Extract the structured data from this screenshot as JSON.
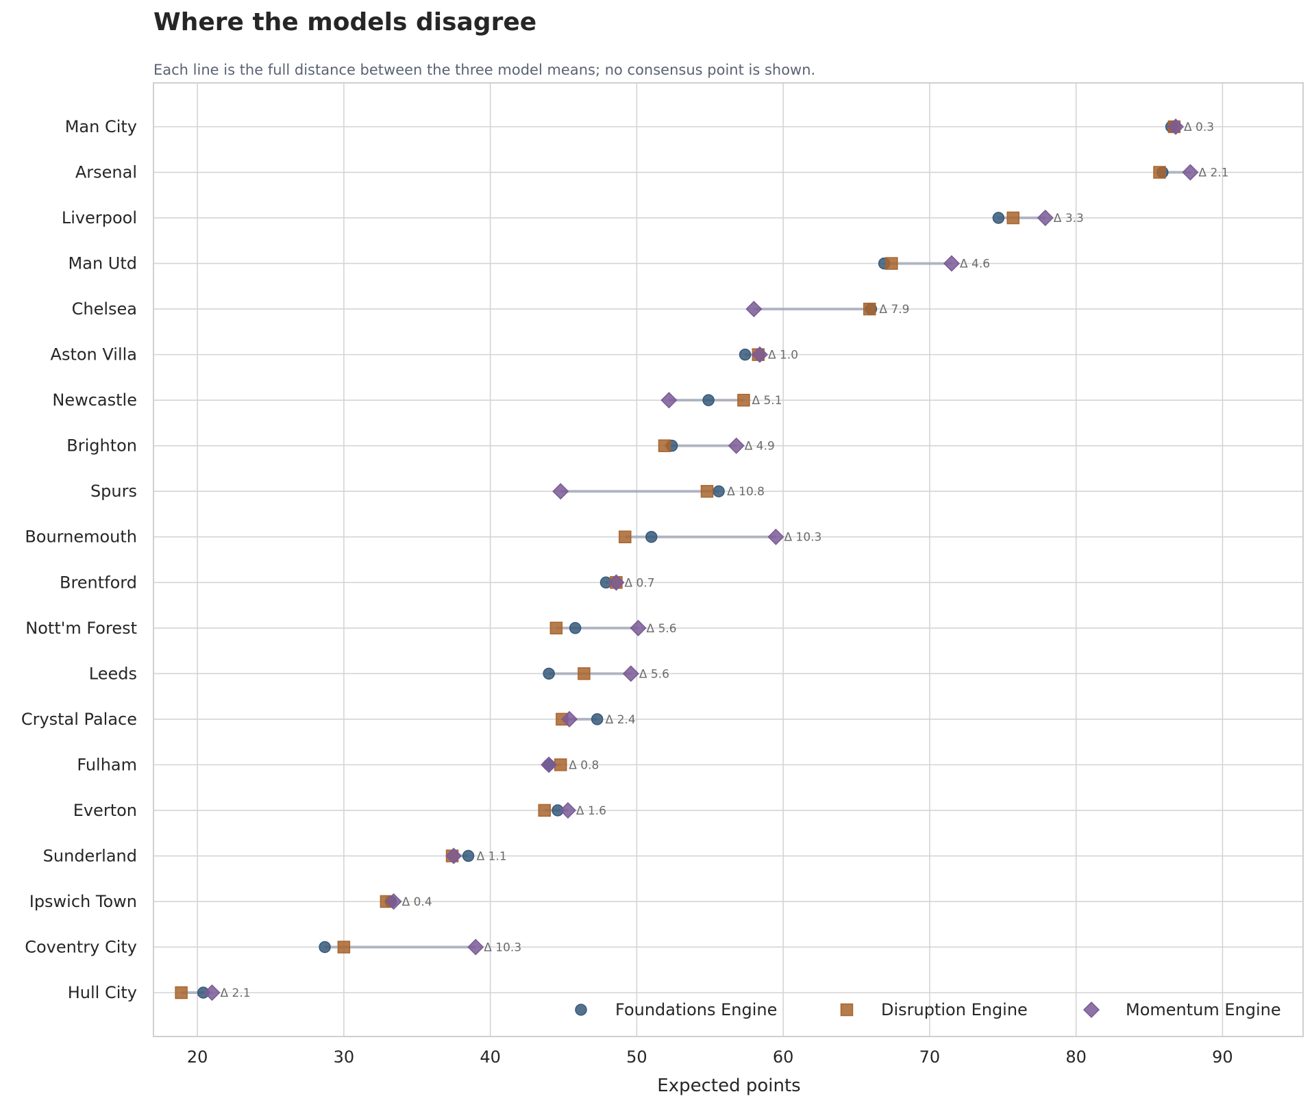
{
  "chart_data": {
    "type": "scatter",
    "title": "Where the models disagree",
    "subtitle": "Each line is the full distance between the three model means; no consensus point is shown.",
    "xlabel": "Expected points",
    "ylabel": "",
    "xlim": [
      17,
      95.5
    ],
    "xticks": [
      20,
      30,
      40,
      50,
      60,
      70,
      80,
      90
    ],
    "grid": true,
    "legend_position": "bottom-right",
    "categories": [
      "Man City",
      "Arsenal",
      "Liverpool",
      "Man Utd",
      "Chelsea",
      "Aston Villa",
      "Newcastle",
      "Brighton",
      "Spurs",
      "Bournemouth",
      "Brentford",
      "Nott'm Forest",
      "Leeds",
      "Crystal Palace",
      "Fulham",
      "Everton",
      "Sunderland",
      "Ipswich Town",
      "Coventry City",
      "Hull City"
    ],
    "series": [
      {
        "name": "Foundations Engine",
        "marker": "circle",
        "color": "#36597a",
        "values": [
          86.5,
          85.9,
          74.7,
          66.9,
          66.0,
          57.4,
          54.9,
          52.4,
          55.6,
          51.0,
          47.9,
          45.8,
          44.0,
          47.3,
          44.0,
          44.6,
          38.5,
          33.2,
          28.7,
          20.4
        ]
      },
      {
        "name": "Disruption Engine",
        "marker": "square",
        "color": "#a8652e",
        "values": [
          86.7,
          85.7,
          75.7,
          67.4,
          65.9,
          58.3,
          57.3,
          51.9,
          54.8,
          49.2,
          48.6,
          44.5,
          46.4,
          44.9,
          44.8,
          43.7,
          37.4,
          32.9,
          30.0,
          18.9
        ]
      },
      {
        "name": "Momentum Engine",
        "marker": "diamond",
        "color": "#7a5a96",
        "values": [
          86.8,
          87.8,
          77.9,
          71.5,
          58.0,
          58.4,
          52.2,
          56.8,
          44.8,
          59.5,
          48.6,
          50.1,
          49.6,
          45.4,
          44.0,
          45.3,
          37.5,
          33.4,
          39.0,
          21.0
        ]
      }
    ],
    "deltas": [
      "Δ 0.3",
      "Δ 2.1",
      "Δ 3.3",
      "Δ 4.6",
      "Δ 7.9",
      "Δ 1.0",
      "Δ 5.1",
      "Δ 4.9",
      "Δ 10.8",
      "Δ 10.3",
      "Δ 0.7",
      "Δ 5.6",
      "Δ 5.6",
      "Δ 2.4",
      "Δ 0.8",
      "Δ 1.6",
      "Δ 1.1",
      "Δ 0.4",
      "Δ 10.3",
      "Δ 2.1"
    ]
  }
}
